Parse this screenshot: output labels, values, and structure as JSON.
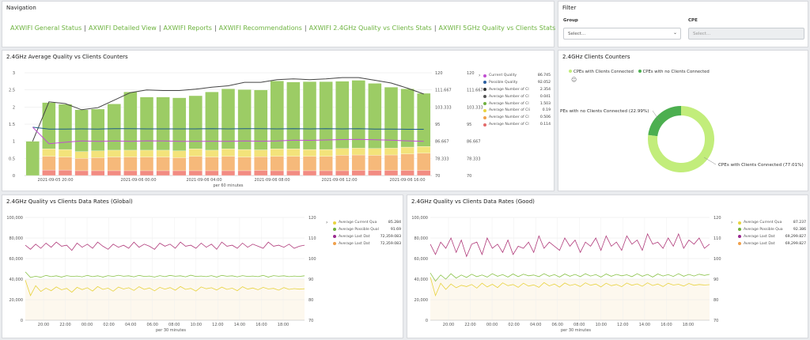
{
  "navigation": {
    "title": "Navigation",
    "links": [
      "AXWIFI General Status",
      "AXWIFI Detailed View",
      "AXWIFI Reports",
      "AXWIFI Recommendations",
      "AXWIFI 2.4GHz Quality vs Clients Stats",
      "AXWIFI 5GHz Quality vs Clients Stats"
    ]
  },
  "filter": {
    "title": "Filter",
    "group_label": "Group",
    "group_placeholder": "Select...",
    "cpe_label": "CPE",
    "cpe_placeholder": "Select..."
  },
  "qvc_counters": {
    "title": "2.4GHz Average Quality vs Clients Counters",
    "xlabel": "per 60 minutes",
    "legend": [
      {
        "label": "Current Quality",
        "value": "86.745",
        "color": "#c14fd1"
      },
      {
        "label": "Possible Quality",
        "value": "92.052",
        "color": "#2b5fa0"
      },
      {
        "label": "Average Number of Cl",
        "value": "2.354",
        "color": "#333333"
      },
      {
        "label": "Average Number of Cl",
        "value": "0.041",
        "color": "#555555"
      },
      {
        "label": "Average Number of Cl",
        "value": "1.503",
        "color": "#6fb03e"
      },
      {
        "label": "Average Number of Cli",
        "value": "0.19",
        "color": "#e8d33f"
      },
      {
        "label": "Average Number of Cl",
        "value": "0.506",
        "color": "#f0a04b"
      },
      {
        "label": "Average Number of Cl",
        "value": "0.114",
        "color": "#e36a6a"
      }
    ]
  },
  "clients_counters": {
    "title": "2.4GHz Clients Counters",
    "legend": [
      "CPEs with Clients Connected",
      "CPEs with no Clients Connected"
    ],
    "label_left": "PEs with no Clients Connected (22.99%)",
    "label_right": "CPEs with Clients Connected (77.01%)"
  },
  "rates_global": {
    "title": "2.4GHz Quality vs Clients Data Rates (Global)",
    "xlabel": "per 30 minutes",
    "legend": [
      {
        "label": "Average Current Qua",
        "value": "85.284",
        "color": "#e8d33f"
      },
      {
        "label": "Average Possible Qual",
        "value": "91.69",
        "color": "#6fb03e"
      },
      {
        "label": "Average Last Dat",
        "value": "72,359.083",
        "color": "#9a2a8f"
      },
      {
        "label": "Average Last Dat",
        "value": "72,359.083",
        "color": "#f0a04b"
      }
    ]
  },
  "rates_good": {
    "title": "2.4GHz Quality vs Clients Data Rates (Good)",
    "xlabel": "per 30 minutes",
    "legend": [
      {
        "label": "Average Current Qua",
        "value": "87.237",
        "color": "#e8d33f"
      },
      {
        "label": "Average Possible Qua",
        "value": "92.386",
        "color": "#6fb03e"
      },
      {
        "label": "Average Last Dat",
        "value": "69,299.827",
        "color": "#9a2a8f"
      },
      {
        "label": "Average Last Dat",
        "value": "69,299.827",
        "color": "#f0a04b"
      }
    ]
  },
  "chart_data": [
    {
      "type": "bar",
      "title": "2.4GHz Average Quality vs Clients Counters",
      "xlabel": "per 60 minutes",
      "x_ticks": [
        "2021-09-05 20:00",
        "2021-09-06 00:00",
        "2021-09-06 04:00",
        "2021-09-06 08:00",
        "2021-09-06 12:00",
        "2021-09-06 16:00"
      ],
      "y_left_ticks": [
        "0",
        "0.5",
        "1",
        "1.5",
        "2",
        "2.5",
        "3"
      ],
      "y_right_ticks": [
        "70",
        "78.333",
        "86.667",
        "95",
        "103.333",
        "111.667",
        "120"
      ],
      "ylim": [
        0,
        3
      ],
      "y2lim": [
        70,
        120
      ],
      "stack_values": {
        "green": [
          1.0,
          1.35,
          1.32,
          1.22,
          1.22,
          1.35,
          1.7,
          1.55,
          1.55,
          1.55,
          1.55,
          1.7,
          1.75,
          1.75,
          1.75,
          1.98,
          1.95,
          1.98,
          1.98,
          1.96,
          1.98,
          1.9,
          1.78,
          1.7,
          1.55
        ],
        "yellow": [
          0.0,
          0.22,
          0.22,
          0.2,
          0.2,
          0.2,
          0.2,
          0.2,
          0.2,
          0.2,
          0.22,
          0.2,
          0.22,
          0.22,
          0.2,
          0.22,
          0.22,
          0.2,
          0.2,
          0.2,
          0.2,
          0.2,
          0.2,
          0.2,
          0.2
        ],
        "orange": [
          0.0,
          0.4,
          0.38,
          0.36,
          0.38,
          0.4,
          0.4,
          0.4,
          0.4,
          0.38,
          0.42,
          0.4,
          0.42,
          0.4,
          0.4,
          0.42,
          0.42,
          0.42,
          0.42,
          0.45,
          0.45,
          0.44,
          0.45,
          0.48,
          0.5
        ],
        "red": [
          0.0,
          0.16,
          0.16,
          0.14,
          0.14,
          0.14,
          0.14,
          0.14,
          0.14,
          0.14,
          0.14,
          0.14,
          0.14,
          0.14,
          0.15,
          0.14,
          0.14,
          0.14,
          0.14,
          0.14,
          0.15,
          0.15,
          0.15,
          0.15,
          0.15
        ]
      },
      "series": [
        {
          "name": "Average Number of Cl",
          "axis": "left",
          "values": [
            1.0,
            2.15,
            2.1,
            1.92,
            1.98,
            2.2,
            2.42,
            2.5,
            2.48,
            2.48,
            2.52,
            2.58,
            2.62,
            2.72,
            2.72,
            2.8,
            2.82,
            2.8,
            2.82,
            2.86,
            2.86,
            2.78,
            2.7,
            2.55,
            2.38
          ]
        },
        {
          "name": "Possible Quality",
          "axis": "right",
          "values": [
            93.5,
            92.6,
            92.6,
            92.7,
            92.6,
            92.8,
            92.8,
            92.7,
            92.7,
            92.7,
            92.7,
            92.8,
            92.7,
            92.8,
            92.8,
            92.7,
            92.8,
            92.7,
            92.8,
            92.7,
            92.8,
            92.6,
            92.6,
            92.5,
            92.5
          ]
        },
        {
          "name": "Current Quality",
          "axis": "right",
          "values": [
            93.5,
            85.5,
            86.2,
            86.8,
            86.6,
            86.8,
            86.6,
            86.9,
            86.8,
            86.6,
            86.6,
            86.7,
            86.6,
            86.8,
            86.7,
            86.8,
            87.2,
            87.1,
            87.3,
            87.5,
            87.6,
            87.4,
            87.2,
            86.9,
            86.6
          ]
        }
      ]
    },
    {
      "type": "pie",
      "title": "2.4GHz Clients Counters",
      "labels": [
        "CPEs with Clients Connected",
        "CPEs with no Clients Connected"
      ],
      "values": [
        77.01,
        22.99
      ],
      "colors": [
        "#c2ed7b",
        "#4caf50"
      ]
    },
    {
      "type": "line",
      "title": "2.4GHz Quality vs Clients Data Rates (Global)",
      "xlabel": "per 30 minutes",
      "x_ticks": [
        "20:00",
        "22:00",
        "00:00",
        "02:00",
        "04:00",
        "06:00",
        "08:00",
        "10:00",
        "12:00",
        "14:00",
        "16:00",
        "18:00"
      ],
      "y_left_ticks": [
        "0",
        "20,000",
        "40,000",
        "60,000",
        "80,000",
        "100,000"
      ],
      "y_right_ticks": [
        "70",
        "80",
        "90",
        "100",
        "110",
        "120"
      ],
      "ylim": [
        0,
        100000
      ],
      "y2lim": [
        70,
        120
      ],
      "series": [
        {
          "name": "Average Last Dat",
          "axis": "left",
          "values": [
            73000,
            69000,
            74000,
            70000,
            75000,
            71000,
            76000,
            72000,
            73000,
            68000,
            75000,
            71000,
            74000,
            70000,
            76000,
            72000,
            69000,
            74000,
            71000,
            73000,
            70000,
            76000,
            71000,
            74000,
            72000,
            69000,
            75000,
            72000,
            74000,
            70000,
            76000,
            72000,
            73000,
            70000,
            75000,
            71000,
            74000,
            69000,
            76000,
            72000,
            73000,
            70000,
            75000,
            71000,
            74000,
            72000,
            70000,
            76000,
            72000,
            73000,
            71000,
            74000,
            70000,
            72000,
            73000
          ]
        },
        {
          "name": "Average Possible Qual",
          "axis": "right",
          "values": [
            93.5,
            90.8,
            91.4,
            90.9,
            91.8,
            91.2,
            91.6,
            91.0,
            91.7,
            91.3,
            91.5,
            91.1,
            91.8,
            91.2,
            91.6,
            91.0,
            91.7,
            91.3,
            91.9,
            91.4,
            91.6,
            91.1,
            91.8,
            91.3,
            91.5,
            91.0,
            91.7,
            91.2,
            91.8,
            91.4,
            91.6,
            91.1,
            91.9,
            91.3,
            91.5,
            91.2,
            91.7,
            91.0,
            91.8,
            91.4,
            91.6,
            91.1,
            91.7,
            91.3,
            91.5,
            91.2,
            91.8,
            91.0,
            91.7,
            91.4,
            91.6,
            91.2,
            91.5,
            91.3,
            91.6
          ]
        },
        {
          "name": "Average Current Qua",
          "axis": "right",
          "values": [
            89.5,
            82.0,
            86.8,
            84.0,
            85.6,
            84.4,
            86.2,
            84.8,
            85.5,
            83.6,
            86.0,
            84.9,
            85.8,
            84.2,
            86.4,
            85.0,
            85.6,
            84.1,
            86.1,
            85.2,
            85.8,
            84.5,
            86.3,
            85.0,
            85.7,
            84.3,
            86.0,
            85.1,
            85.9,
            84.6,
            86.4,
            85.0,
            85.5,
            84.2,
            86.2,
            85.3,
            85.8,
            84.7,
            86.1,
            85.0,
            85.6,
            84.4,
            86.3,
            85.1,
            85.7,
            84.8,
            86.0,
            85.2,
            85.5,
            84.6,
            85.9,
            85.0,
            85.4,
            85.1,
            85.3
          ]
        }
      ]
    },
    {
      "type": "line",
      "title": "2.4GHz Quality vs Clients Data Rates (Good)",
      "xlabel": "per 30 minutes",
      "x_ticks": [
        "20:00",
        "22:00",
        "00:00",
        "02:00",
        "04:00",
        "06:00",
        "08:00",
        "10:00",
        "12:00",
        "14:00",
        "16:00",
        "18:00"
      ],
      "y_left_ticks": [
        "0",
        "20,000",
        "40,000",
        "60,000",
        "80,000",
        "100,000"
      ],
      "y_right_ticks": [
        "70",
        "80",
        "90",
        "100",
        "110",
        "120"
      ],
      "ylim": [
        0,
        100000
      ],
      "y2lim": [
        70,
        120
      ],
      "series": [
        {
          "name": "Average Last Dat",
          "axis": "left",
          "values": [
            74000,
            64000,
            76000,
            70000,
            80000,
            66000,
            78000,
            62000,
            74000,
            76000,
            64000,
            80000,
            70000,
            74000,
            66000,
            78000,
            64000,
            72000,
            70000,
            76000,
            66000,
            82000,
            70000,
            76000,
            72000,
            68000,
            80000,
            72000,
            78000,
            66000,
            76000,
            72000,
            80000,
            68000,
            82000,
            72000,
            76000,
            68000,
            82000,
            74000,
            78000,
            68000,
            84000,
            74000,
            76000,
            70000,
            80000,
            72000,
            84000,
            70000,
            78000,
            74000,
            80000,
            70000,
            74000
          ]
        },
        {
          "name": "Average Possible Qua",
          "axis": "right",
          "values": [
            93.0,
            89.0,
            92.0,
            90.0,
            92.6,
            90.5,
            92.0,
            90.8,
            92.4,
            91.2,
            92.0,
            91.0,
            92.6,
            91.4,
            92.2,
            91.0,
            92.5,
            91.2,
            92.4,
            91.6,
            92.0,
            91.2,
            92.6,
            91.4,
            92.2,
            91.0,
            92.5,
            91.4,
            92.3,
            91.2,
            92.6,
            91.5,
            92.2,
            91.0,
            92.5,
            91.4,
            92.3,
            91.6,
            92.1,
            91.2,
            92.6,
            91.4,
            92.3,
            91.0,
            92.5,
            91.5,
            92.2,
            91.3,
            92.6,
            91.4,
            92.3,
            91.5,
            92.4,
            91.8,
            92.3
          ]
        },
        {
          "name": "Average Current Qua",
          "axis": "right",
          "values": [
            91.0,
            82.0,
            88.0,
            85.0,
            87.6,
            85.8,
            87.0,
            86.4,
            87.4,
            85.6,
            88.0,
            86.2,
            87.5,
            85.9,
            88.2,
            86.8,
            87.4,
            86.0,
            88.0,
            86.6,
            87.2,
            86.0,
            88.3,
            86.7,
            87.6,
            86.1,
            88.1,
            86.9,
            87.5,
            86.4,
            88.2,
            87.0,
            87.6,
            86.2,
            88.0,
            86.8,
            87.4,
            86.3,
            88.1,
            87.0,
            87.7,
            86.5,
            88.2,
            86.9,
            87.6,
            86.4,
            88.0,
            87.1,
            87.5,
            86.6,
            87.9,
            87.0,
            87.4,
            87.1,
            87.3
          ]
        }
      ]
    }
  ]
}
